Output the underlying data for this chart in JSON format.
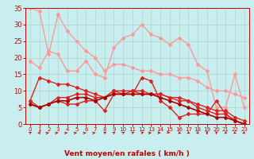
{
  "title": "",
  "xlabel": "Vent moyen/en rafales ( km/h )",
  "ylabel": "",
  "background_color": "#c8eef0",
  "grid_color": "#aad8cc",
  "xlim": [
    -0.5,
    23.5
  ],
  "ylim": [
    0,
    35
  ],
  "yticks": [
    0,
    5,
    10,
    15,
    20,
    25,
    30,
    35
  ],
  "xticks": [
    0,
    1,
    2,
    3,
    4,
    5,
    6,
    7,
    8,
    9,
    10,
    11,
    12,
    13,
    14,
    15,
    16,
    17,
    18,
    19,
    20,
    21,
    22,
    23
  ],
  "series": [
    {
      "x": [
        0,
        1,
        2,
        3,
        4,
        5,
        6,
        7,
        8,
        9,
        10,
        11,
        12,
        13,
        14,
        15,
        16,
        17,
        18,
        19,
        20,
        21,
        22,
        23
      ],
      "y": [
        19,
        17,
        22,
        21,
        16,
        16,
        19,
        15,
        14,
        23,
        26,
        27,
        30,
        27,
        26,
        24,
        26,
        24,
        18,
        16,
        5,
        5,
        15,
        5
      ],
      "color": "#ff9999",
      "marker": "D",
      "markersize": 2,
      "linewidth": 1.0,
      "zorder": 2
    },
    {
      "x": [
        0,
        1,
        2,
        3,
        4,
        5,
        6,
        7,
        8,
        9,
        10,
        11,
        12,
        13,
        14,
        15,
        16,
        17,
        18,
        19,
        20,
        21,
        22,
        23
      ],
      "y": [
        35,
        34,
        21,
        33,
        28,
        25,
        22,
        20,
        16,
        18,
        18,
        17,
        16,
        16,
        15,
        15,
        14,
        14,
        13,
        11,
        10,
        10,
        9,
        8
      ],
      "color": "#ff9999",
      "marker": "D",
      "markersize": 2,
      "linewidth": 1.0,
      "zorder": 2
    },
    {
      "x": [
        0,
        1,
        2,
        3,
        4,
        5,
        6,
        7,
        8,
        9,
        10,
        11,
        12,
        13,
        14,
        15,
        16,
        17,
        18,
        19,
        20,
        21,
        22,
        23
      ],
      "y": [
        7,
        5,
        6,
        7,
        6,
        6,
        7,
        7,
        4,
        9,
        9,
        9,
        14,
        13,
        7,
        5,
        2,
        3,
        3,
        3,
        7,
        3,
        1,
        0
      ],
      "color": "#dd2222",
      "marker": "D",
      "markersize": 2,
      "linewidth": 1.0,
      "zorder": 3
    },
    {
      "x": [
        0,
        1,
        2,
        3,
        4,
        5,
        6,
        7,
        8,
        9,
        10,
        11,
        12,
        13,
        14,
        15,
        16,
        17,
        18,
        19,
        20,
        21,
        22,
        23
      ],
      "y": [
        7,
        14,
        13,
        12,
        12,
        11,
        10,
        9,
        8,
        10,
        10,
        10,
        9,
        9,
        9,
        8,
        8,
        7,
        6,
        5,
        4,
        4,
        2,
        1
      ],
      "color": "#dd2222",
      "marker": "D",
      "markersize": 2,
      "linewidth": 1.0,
      "zorder": 3
    },
    {
      "x": [
        0,
        1,
        2,
        3,
        4,
        5,
        6,
        7,
        8,
        9,
        10,
        11,
        12,
        13,
        14,
        15,
        16,
        17,
        18,
        19,
        20,
        21,
        22,
        23
      ],
      "y": [
        6,
        5,
        6,
        8,
        8,
        9,
        9,
        8,
        8,
        10,
        9,
        10,
        10,
        9,
        9,
        8,
        7,
        7,
        5,
        4,
        3,
        3,
        1,
        0
      ],
      "color": "#dd2222",
      "marker": "D",
      "markersize": 2,
      "linewidth": 1.0,
      "zorder": 3
    },
    {
      "x": [
        0,
        1,
        2,
        3,
        4,
        5,
        6,
        7,
        8,
        9,
        10,
        11,
        12,
        13,
        14,
        15,
        16,
        17,
        18,
        19,
        20,
        21,
        22,
        23
      ],
      "y": [
        6,
        5,
        6,
        7,
        7,
        8,
        8,
        7,
        8,
        9,
        9,
        9,
        9,
        9,
        8,
        7,
        6,
        5,
        4,
        3,
        2,
        2,
        1,
        0
      ],
      "color": "#aa0000",
      "marker": "D",
      "markersize": 2,
      "linewidth": 1.2,
      "zorder": 4
    }
  ],
  "arrow_angles": [
    45,
    70,
    15,
    10,
    10,
    10,
    10,
    10,
    30,
    50,
    50,
    30,
    20,
    10,
    5,
    -15,
    -30,
    -45,
    -60,
    -90,
    -100,
    -120,
    -135,
    -150
  ],
  "arrow_color": "#cc0000"
}
